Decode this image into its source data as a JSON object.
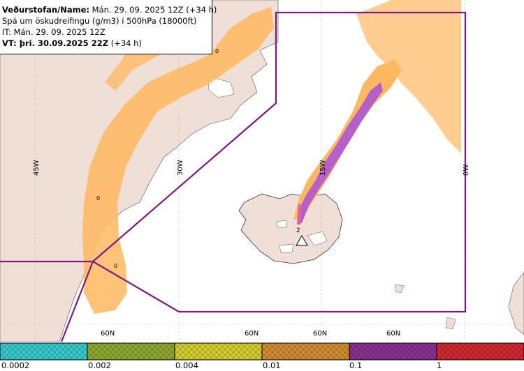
{
  "header": {
    "line1_bold": "Veðurstofan/Name:",
    "line1_rest": " Mán. 29. 09. 2025 12Z (+34 h)",
    "line2": "Spá um öskudreifingu (g/m3) í 500hPa (18000ft)",
    "line3": "IT: Mán. 29. 09. 2025 12Z",
    "line4_bold": "VT: þri. 30.09.2025 22Z",
    "line4_rest": " (+34 h)"
  },
  "map_labels": {
    "lon_45w": "45W",
    "lon_30w": "30W",
    "lon_15w": "15W",
    "lon_0w": "0W",
    "lat_60n_a": "60N",
    "lat_60n_b": "60N",
    "lat_60n_c": "60N",
    "lat_60n_d": "60N",
    "zero_1": "0",
    "zero_2": "0",
    "zero_3": "0",
    "volcano_num": "2"
  },
  "legend": {
    "ticks": [
      "0.0002",
      "0.002",
      "0.004",
      "0.01",
      "0.1",
      "1"
    ],
    "colors": [
      "#38c8c8",
      "#8aa830",
      "#d2cc30",
      "#d08a30",
      "#8a3090",
      "#d02830"
    ]
  },
  "colors": {
    "sea": "#ffffff",
    "land": "#efdfd6",
    "boundary": "#7a1a82",
    "ash_low": "#ffb860",
    "ash_high": "#b460c8"
  }
}
